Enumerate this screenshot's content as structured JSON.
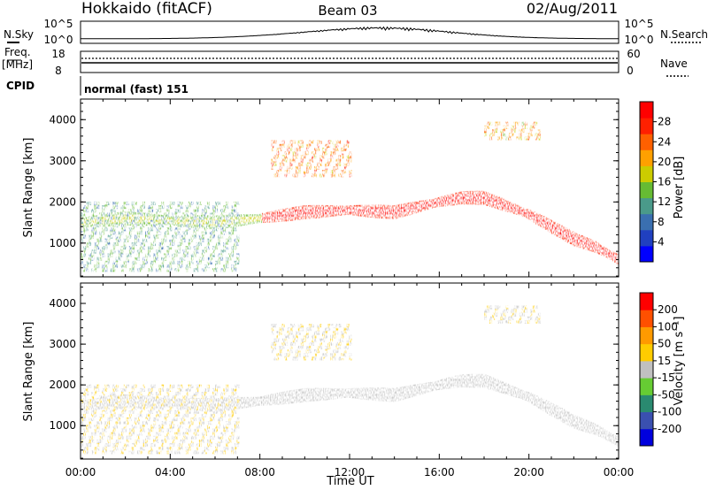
{
  "header": {
    "station": "Hokkaido (fitACF)",
    "beam": "Beam 03",
    "date": "02/Aug/2011"
  },
  "noise_panel": {
    "left_label": "N.Sky",
    "right_label": "N.Search",
    "ticks_left": [
      "10^5",
      "10^0"
    ],
    "ticks_right": [
      "10^5",
      "10^0"
    ]
  },
  "freq_panel": {
    "left_label_1": "Freq.",
    "left_label_2": "[MHz]",
    "right_label": "Nave",
    "ticks_left": [
      "18",
      "8"
    ],
    "ticks_right": [
      "60",
      "0"
    ]
  },
  "cpid": {
    "label": "CPID",
    "text": "normal (fast) 151"
  },
  "colors": {
    "power_scale": [
      "#0000ff",
      "#2040c0",
      "#3a6fb0",
      "#4a9a8a",
      "#66bb33",
      "#cccc00",
      "#ffa000",
      "#ff6000",
      "#ff2000",
      "#ff0000"
    ],
    "velocity_scale": [
      "#ff0000",
      "#ff5000",
      "#ff9a00",
      "#ffcc00",
      "#c0c0c0",
      "#66cc33",
      "#2a8a70",
      "#3a50b0",
      "#0000dd"
    ],
    "ground_scatter": "#c0c0c0"
  },
  "chart_data": [
    {
      "type": "heatmap",
      "name": "power",
      "title": "",
      "xlabel": "",
      "ylabel": "Slant Range [km]",
      "x_ticks": [
        "00:00",
        "04:00",
        "08:00",
        "12:00",
        "16:00",
        "20:00",
        "00:00"
      ],
      "xlim_hours": [
        0,
        24
      ],
      "y_ticks": [
        "1000",
        "2000",
        "3000",
        "4000"
      ],
      "ylim_km": [
        180,
        4500
      ],
      "colorbar_label": "Power [dB]",
      "colorbar_ticks": [
        "4",
        "8",
        "12",
        "16",
        "20",
        "24",
        "28"
      ],
      "colorbar_range": [
        0,
        30
      ],
      "main_echo_track": {
        "x_hours": [
          0,
          2,
          4,
          6,
          8,
          10,
          12,
          14,
          16,
          17,
          18,
          19,
          20,
          21,
          22,
          23,
          24
        ],
        "y_km": [
          1500,
          1600,
          1550,
          1500,
          1600,
          1750,
          1800,
          1750,
          2000,
          2100,
          2100,
          1900,
          1700,
          1400,
          1100,
          900,
          600
        ]
      },
      "features": [
        {
          "x_range": [
            0,
            7
          ],
          "y_km": [
            300,
            2000
          ],
          "value_db": 10
        },
        {
          "x_range": [
            8.5,
            12
          ],
          "y_km": [
            2600,
            3500
          ],
          "value_db": 20
        },
        {
          "x_range": [
            18,
            20.5
          ],
          "y_km": [
            3500,
            3900
          ],
          "value_db": 18
        }
      ]
    },
    {
      "type": "heatmap",
      "name": "velocity",
      "title": "",
      "xlabel": "Time UT",
      "ylabel": "Slant Range [km]",
      "x_ticks": [
        "00:00",
        "04:00",
        "08:00",
        "12:00",
        "16:00",
        "20:00",
        "00:00"
      ],
      "xlim_hours": [
        0,
        24
      ],
      "y_ticks": [
        "1000",
        "2000",
        "3000",
        "4000"
      ],
      "ylim_km": [
        180,
        4500
      ],
      "colorbar_label": "Velocity [m s⁻¹]",
      "colorbar_ticks": [
        "200",
        "100",
        "50",
        "15",
        "-15",
        "-50",
        "-100",
        "-200"
      ],
      "colorbar_range": [
        -250,
        250
      ],
      "dominant_value": "ground scatter (-15 to 15)"
    }
  ]
}
